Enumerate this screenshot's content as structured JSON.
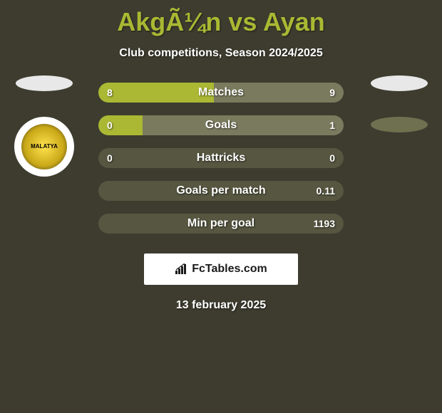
{
  "title": "AkgÃ¼n vs Ayan",
  "subtitle": "Club competitions, Season 2024/2025",
  "date": "13 february 2025",
  "brand": {
    "text": "FcTables.com"
  },
  "colors": {
    "background": "#3d3c2f",
    "accent": "#aab833",
    "bar_track": "#565641",
    "bar_left": "#aab833",
    "bar_right": "#7a7a5e",
    "ellipse_left": "#e8e8e8",
    "ellipse_right_1": "#e8e8e8",
    "ellipse_right_2": "#6f7050"
  },
  "left_badges": {
    "ellipse_color": "#e8e8e8",
    "team_name": "MALATYA"
  },
  "right_badges": {
    "ellipse1_color": "#e8e8e8",
    "ellipse2_color": "#6f7050"
  },
  "stats": [
    {
      "label": "Matches",
      "left_val": "8",
      "right_val": "9",
      "left_pct": 47,
      "right_pct": 53
    },
    {
      "label": "Goals",
      "left_val": "0",
      "right_val": "1",
      "left_pct": 18,
      "right_pct": 82
    },
    {
      "label": "Hattricks",
      "left_val": "0",
      "right_val": "0",
      "left_pct": 0,
      "right_pct": 0
    },
    {
      "label": "Goals per match",
      "left_val": "",
      "right_val": "0.11",
      "left_pct": 0,
      "right_pct": 0
    },
    {
      "label": "Min per goal",
      "left_val": "",
      "right_val": "1193",
      "left_pct": 0,
      "right_pct": 0
    }
  ]
}
